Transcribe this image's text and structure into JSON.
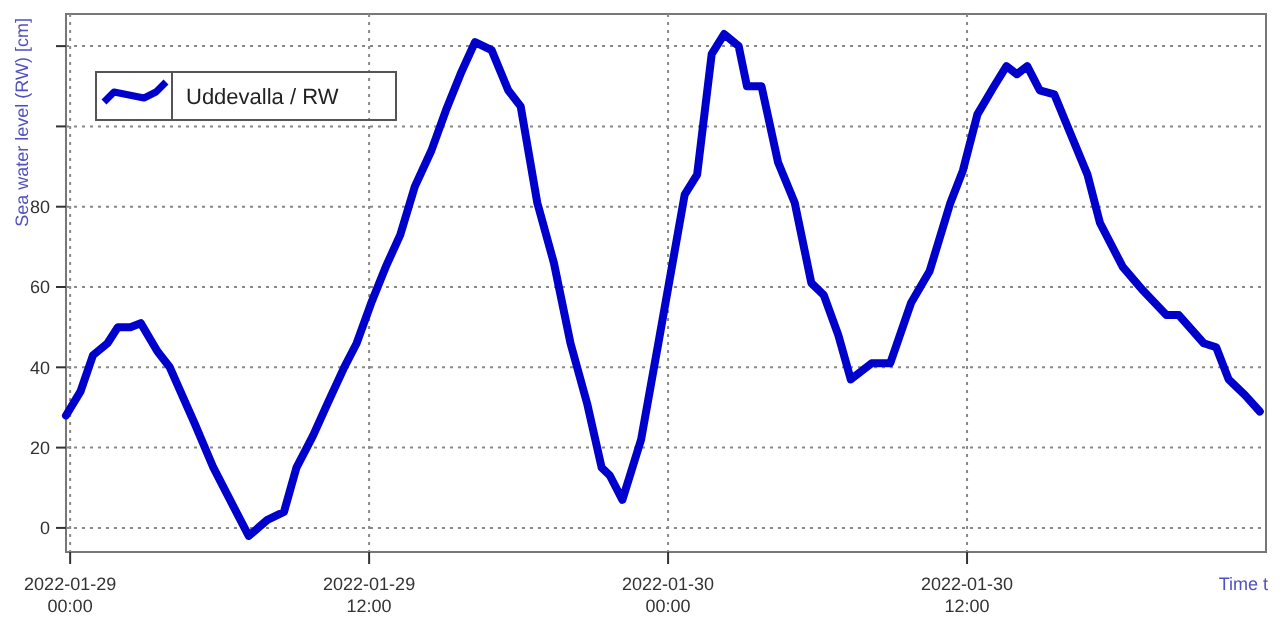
{
  "chart_data": {
    "type": "line",
    "xlabel": "Time t",
    "ylabel": "Sea water level (RW) [cm]",
    "xlim": [
      "2022-01-28T23:50",
      "2022-01-31T00:00"
    ],
    "xticks": [
      {
        "value": "2022-01-29T00:00",
        "label": "2022-01-29\n00:00"
      },
      {
        "value": "2022-01-29T12:00",
        "label": "2022-01-29\n12:00"
      },
      {
        "value": "2022-01-30T00:00",
        "label": "2022-01-30\n00:00"
      },
      {
        "value": "2022-01-30T12:00",
        "label": "2022-01-30\n12:00"
      }
    ],
    "ylim": [
      -6,
      128
    ],
    "yticks": [
      0,
      20,
      40,
      60,
      80,
      {
        "value": 100,
        "label": null
      },
      {
        "value": 120,
        "label": null
      }
    ],
    "grid": true,
    "legend": "top left",
    "marker": "none",
    "line_style": "solid",
    "x": [
      "2022-01-28T23:50",
      "2022-01-29T00:25",
      "2022-01-29T00:55",
      "2022-01-29T01:30",
      "2022-01-29T01:55",
      "2022-01-29T02:25",
      "2022-01-29T02:50",
      "2022-01-29T03:30",
      "2022-01-29T04:00",
      "2022-01-29T05:00",
      "2022-01-29T05:45",
      "2022-01-29T06:35",
      "2022-01-29T07:10",
      "2022-01-29T07:55",
      "2022-01-29T08:35",
      "2022-01-29T09:05",
      "2022-01-29T09:45",
      "2022-01-29T10:20",
      "2022-01-29T11:00",
      "2022-01-29T11:30",
      "2022-01-29T12:05",
      "2022-01-29T12:40",
      "2022-01-29T13:15",
      "2022-01-29T13:50",
      "2022-01-29T14:30",
      "2022-01-29T15:05",
      "2022-01-29T15:40",
      "2022-01-29T16:15",
      "2022-01-29T16:55",
      "2022-01-29T17:35",
      "2022-01-29T18:05",
      "2022-01-29T18:45",
      "2022-01-29T19:25",
      "2022-01-29T20:05",
      "2022-01-29T20:45",
      "2022-01-29T21:20",
      "2022-01-29T21:40",
      "2022-01-29T22:10",
      "2022-01-29T22:55",
      "2022-01-29T23:40",
      "2022-01-30T00:40",
      "2022-01-30T01:10",
      "2022-01-30T01:45",
      "2022-01-30T02:15",
      "2022-01-30T02:50",
      "2022-01-30T03:10",
      "2022-01-30T03:45",
      "2022-01-30T04:25",
      "2022-01-30T05:05",
      "2022-01-30T05:45",
      "2022-01-30T06:15",
      "2022-01-30T06:50",
      "2022-01-30T07:20",
      "2022-01-30T08:10",
      "2022-01-30T08:55",
      "2022-01-30T09:45",
      "2022-01-30T10:30",
      "2022-01-30T11:20",
      "2022-01-30T11:50",
      "2022-01-30T12:25",
      "2022-01-30T13:05",
      "2022-01-30T13:35",
      "2022-01-30T14:00",
      "2022-01-30T14:25",
      "2022-01-30T14:55",
      "2022-01-30T15:30",
      "2022-01-30T16:10",
      "2022-01-30T16:50",
      "2022-01-30T17:20",
      "2022-01-30T18:15",
      "2022-01-30T19:05",
      "2022-01-30T20:00",
      "2022-01-30T20:30",
      "2022-01-30T21:30",
      "2022-01-30T22:00",
      "2022-01-30T22:30",
      "2022-01-30T23:10",
      "2022-01-30T23:45"
    ],
    "series": [
      {
        "name": "Uddevalla / RW",
        "color": "#0000cc",
        "values": [
          28,
          34,
          43,
          46,
          50,
          50,
          51,
          44,
          40,
          26,
          15,
          5,
          -2,
          2,
          4,
          15,
          23,
          31,
          40,
          46,
          56,
          65,
          73,
          85,
          94,
          104,
          113,
          121,
          119,
          109,
          105,
          81,
          66,
          46,
          31,
          15,
          13,
          7,
          22,
          48,
          83,
          88,
          118,
          123,
          120,
          110,
          110,
          91,
          81,
          61,
          58,
          48,
          37,
          41,
          41,
          56,
          64,
          81,
          89,
          103,
          110,
          115,
          113,
          115,
          109,
          108,
          98,
          88,
          76,
          65,
          59,
          53,
          53,
          46,
          45,
          37,
          33,
          29
        ]
      }
    ]
  }
}
